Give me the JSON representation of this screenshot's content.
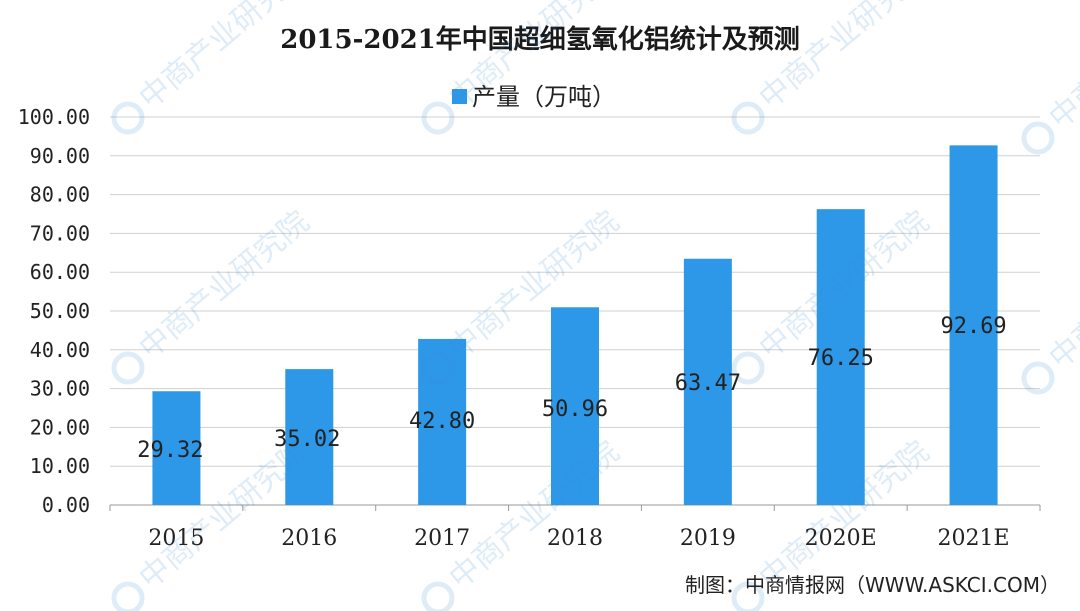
{
  "chart_data": {
    "type": "bar",
    "title": "2015-2021年中国超细氢氧化铝统计及预测",
    "categories": [
      "2015",
      "2016",
      "2017",
      "2018",
      "2019",
      "2020E",
      "2021E"
    ],
    "series": [
      {
        "name": "产量（万吨）",
        "values": [
          29.32,
          35.02,
          42.8,
          50.96,
          63.47,
          76.25,
          92.69
        ],
        "labels": [
          "29.32",
          "35.02",
          "42.80",
          "50.96",
          "63.47",
          "76.25",
          "92.69"
        ],
        "color": "#2d97e8"
      }
    ],
    "ylim": [
      0,
      100
    ],
    "yticks": [
      "0.00",
      "10.00",
      "20.00",
      "30.00",
      "40.00",
      "50.00",
      "60.00",
      "70.00",
      "80.00",
      "90.00",
      "100.00"
    ],
    "grid": true,
    "legend": "top-center"
  },
  "source": "制图：中商情报网（WWW.ASKCI.COM）",
  "watermark": "中商产业研究院"
}
